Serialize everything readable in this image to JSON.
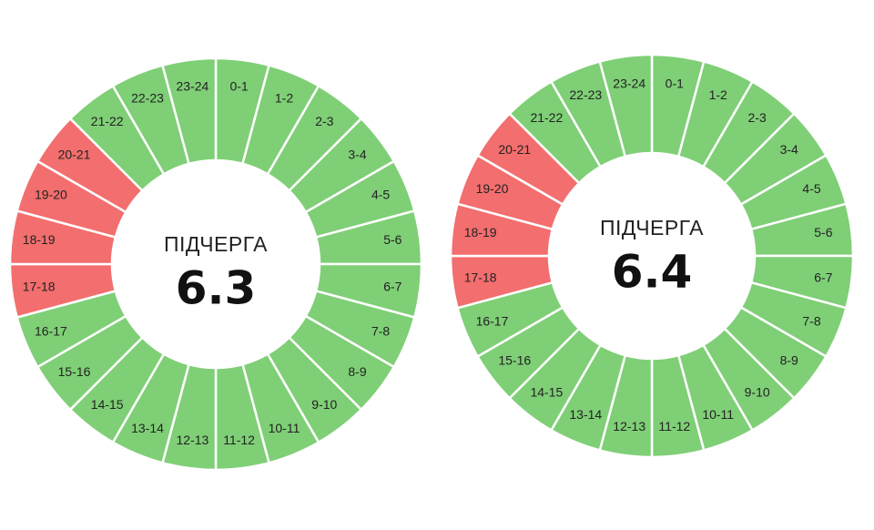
{
  "chart_data": [
    {
      "type": "pie",
      "center_title": "ПІДЧЕРГА",
      "center_value": "6.3",
      "segments": [
        {
          "label": "0-1",
          "state": "on"
        },
        {
          "label": "1-2",
          "state": "on"
        },
        {
          "label": "2-3",
          "state": "on"
        },
        {
          "label": "3-4",
          "state": "on"
        },
        {
          "label": "4-5",
          "state": "on"
        },
        {
          "label": "5-6",
          "state": "on"
        },
        {
          "label": "6-7",
          "state": "on"
        },
        {
          "label": "7-8",
          "state": "on"
        },
        {
          "label": "8-9",
          "state": "on"
        },
        {
          "label": "9-10",
          "state": "on"
        },
        {
          "label": "10-11",
          "state": "on"
        },
        {
          "label": "11-12",
          "state": "on"
        },
        {
          "label": "12-13",
          "state": "on"
        },
        {
          "label": "13-14",
          "state": "on"
        },
        {
          "label": "14-15",
          "state": "on"
        },
        {
          "label": "15-16",
          "state": "on"
        },
        {
          "label": "16-17",
          "state": "on"
        },
        {
          "label": "17-18",
          "state": "off"
        },
        {
          "label": "18-19",
          "state": "off"
        },
        {
          "label": "19-20",
          "state": "off"
        },
        {
          "label": "20-21",
          "state": "off"
        },
        {
          "label": "21-22",
          "state": "on"
        },
        {
          "label": "22-23",
          "state": "on"
        },
        {
          "label": "23-24",
          "state": "on"
        }
      ]
    },
    {
      "type": "pie",
      "center_title": "ПІДЧЕРГА",
      "center_value": "6.4",
      "segments": [
        {
          "label": "0-1",
          "state": "on"
        },
        {
          "label": "1-2",
          "state": "on"
        },
        {
          "label": "2-3",
          "state": "on"
        },
        {
          "label": "3-4",
          "state": "on"
        },
        {
          "label": "4-5",
          "state": "on"
        },
        {
          "label": "5-6",
          "state": "on"
        },
        {
          "label": "6-7",
          "state": "on"
        },
        {
          "label": "7-8",
          "state": "on"
        },
        {
          "label": "8-9",
          "state": "on"
        },
        {
          "label": "9-10",
          "state": "on"
        },
        {
          "label": "10-11",
          "state": "on"
        },
        {
          "label": "11-12",
          "state": "on"
        },
        {
          "label": "12-13",
          "state": "on"
        },
        {
          "label": "13-14",
          "state": "on"
        },
        {
          "label": "14-15",
          "state": "on"
        },
        {
          "label": "15-16",
          "state": "on"
        },
        {
          "label": "16-17",
          "state": "on"
        },
        {
          "label": "17-18",
          "state": "off"
        },
        {
          "label": "18-19",
          "state": "off"
        },
        {
          "label": "19-20",
          "state": "off"
        },
        {
          "label": "20-21",
          "state": "off"
        },
        {
          "label": "21-22",
          "state": "on"
        },
        {
          "label": "22-23",
          "state": "on"
        },
        {
          "label": "23-24",
          "state": "on"
        }
      ]
    }
  ],
  "colors": {
    "on": "#7fcf76",
    "off": "#f36e6e",
    "divider": "#ffffff"
  }
}
